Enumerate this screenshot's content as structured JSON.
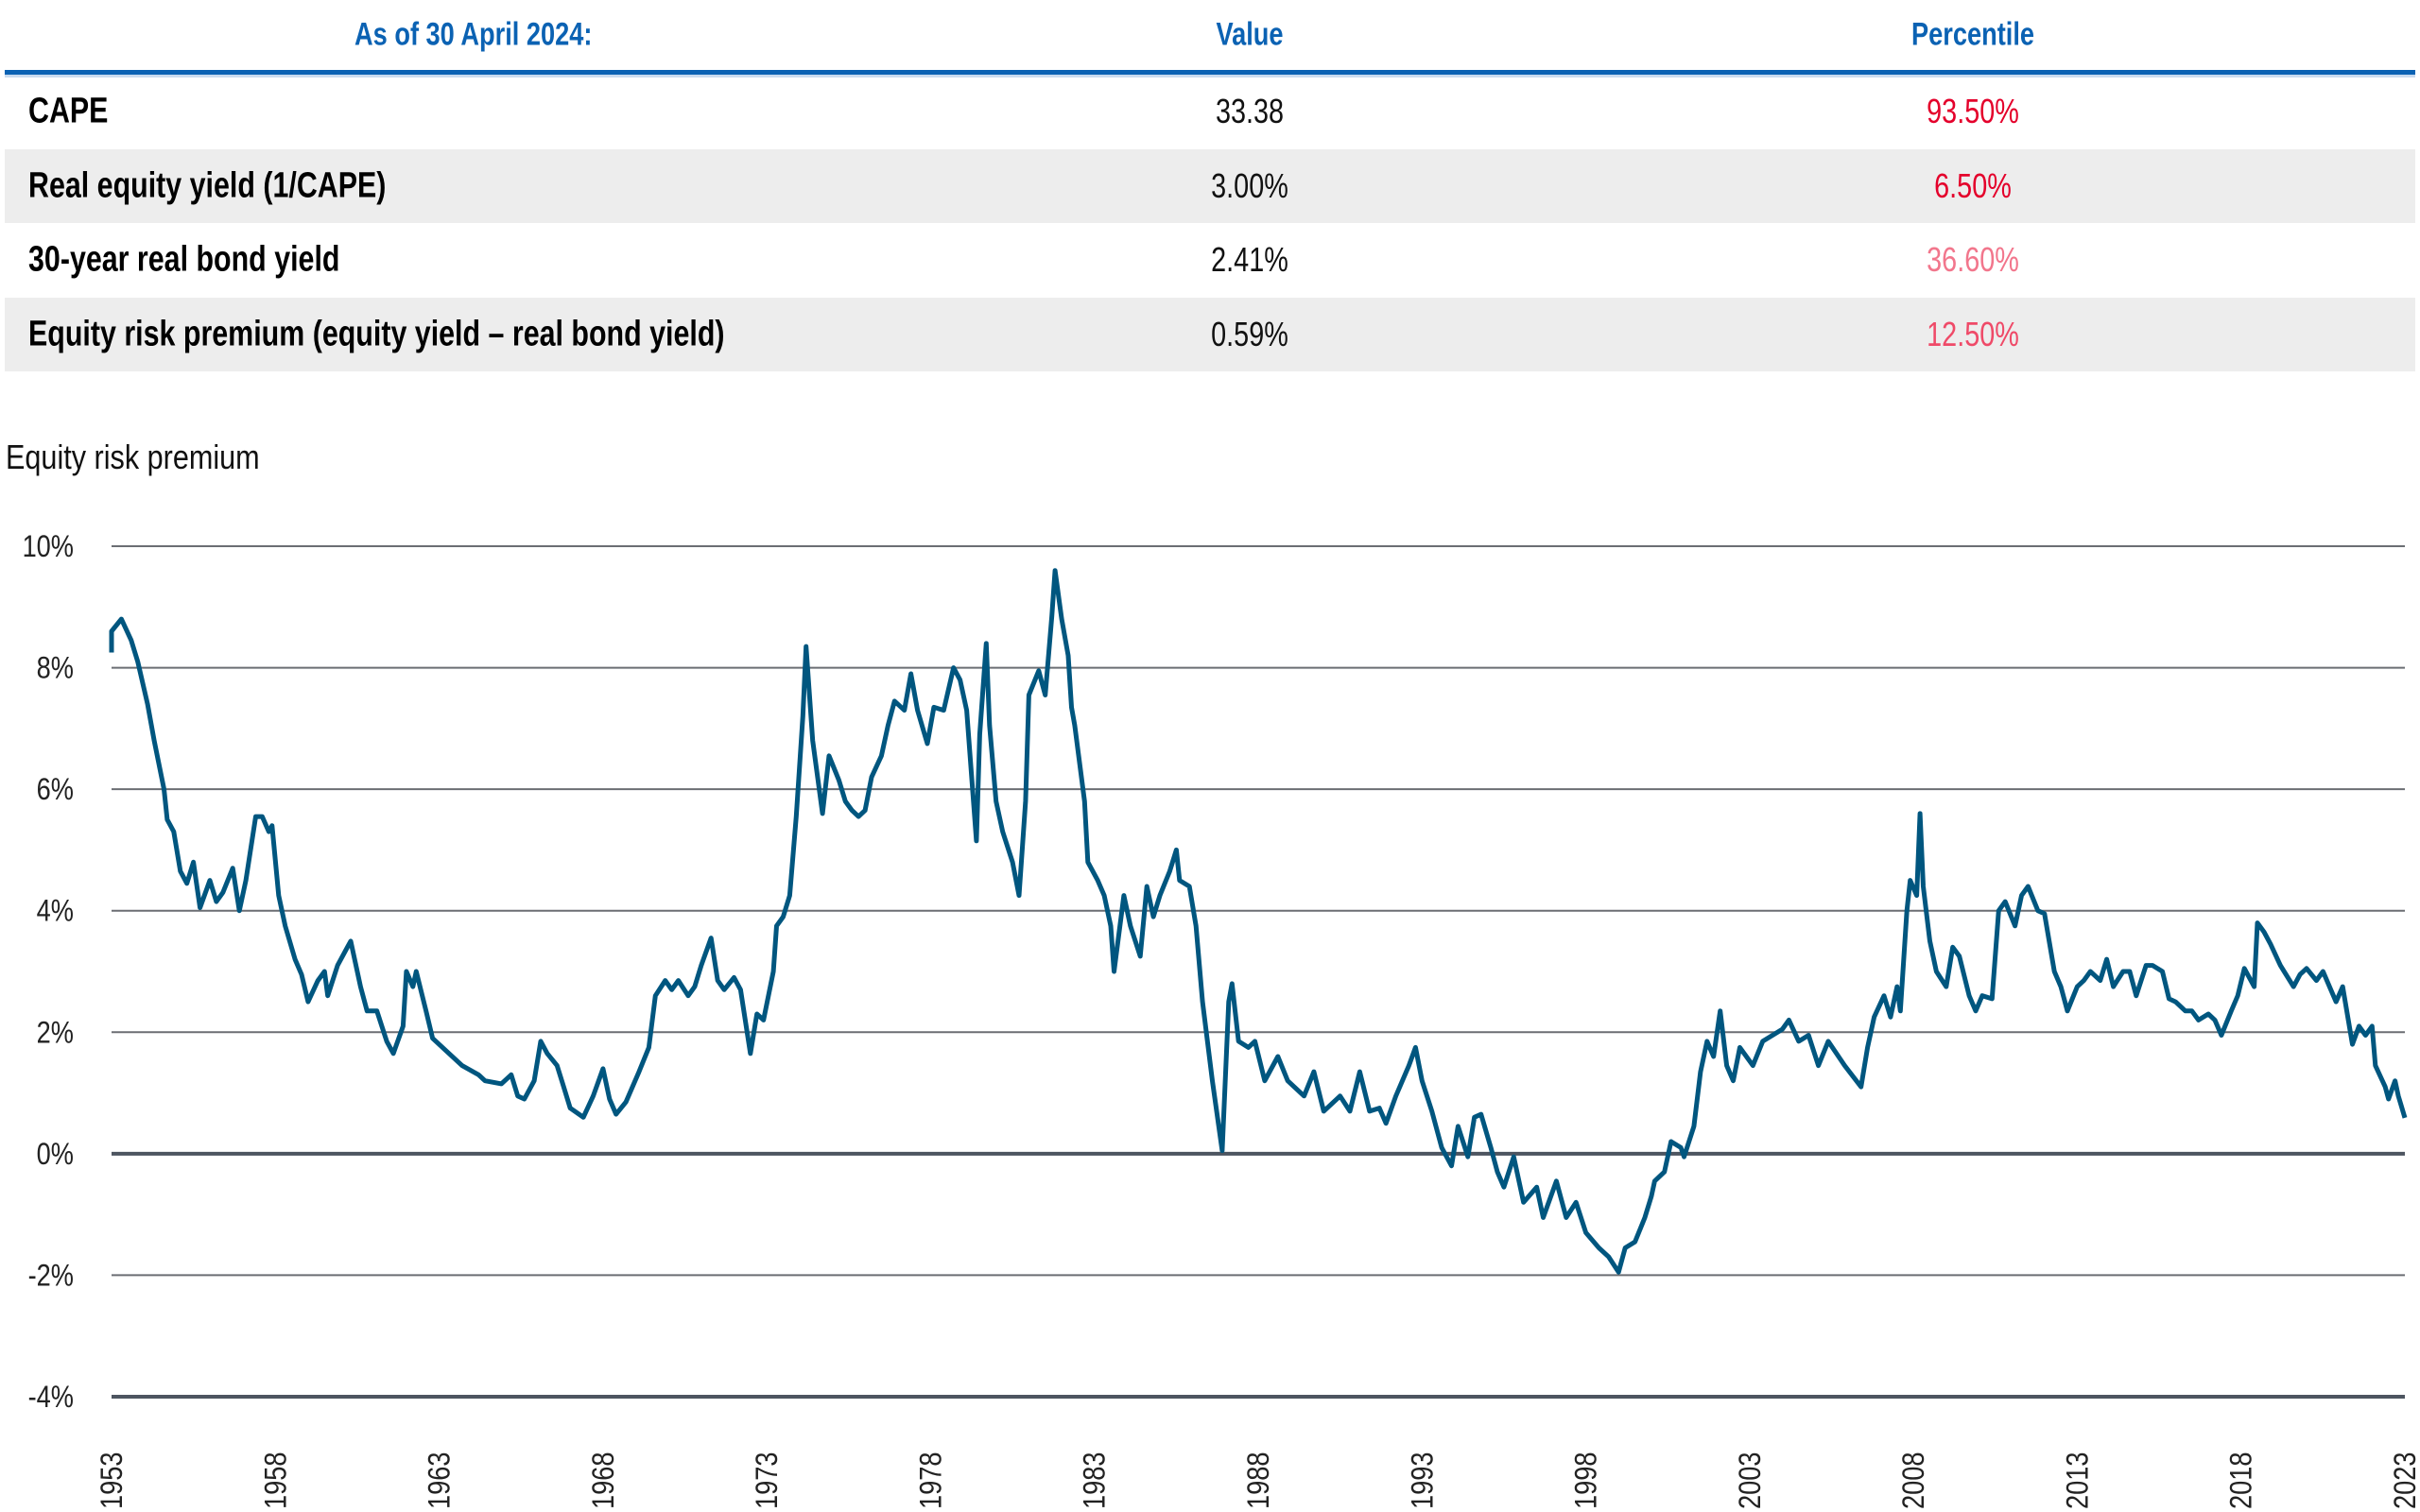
{
  "table": {
    "headers": [
      "As of 30 April 2024:",
      "Value",
      "Percentile"
    ],
    "rows": [
      {
        "label": "CAPE",
        "value": "33.38",
        "percentile": "93.50%",
        "color": "#e4002b"
      },
      {
        "label": "Real equity yield (1/CAPE)",
        "value": "3.00%",
        "percentile": "6.50%",
        "color": "#e4002b"
      },
      {
        "label": "30-year real bond yield",
        "value": "2.41%",
        "percentile": "36.60%",
        "color": "#f2768c"
      },
      {
        "label": "Equity risk premium (equity yield – real bond yield)",
        "value": "0.59%",
        "percentile": "12.50%",
        "color": "#ef4a68"
      }
    ]
  },
  "chart_data": {
    "type": "line",
    "title": "Equity risk premium",
    "ylim": [
      -4,
      10
    ],
    "yticks": [
      10,
      8,
      6,
      4,
      2,
      0,
      -2,
      -4
    ],
    "ytick_labels": [
      "10%",
      "8%",
      "6%",
      "4%",
      "2%",
      "0%",
      "-2%",
      "-4%"
    ],
    "xlim": [
      1953,
      2023
    ],
    "xtick_labels": [
      "1953",
      "1958",
      "1963",
      "1968",
      "1973",
      "1978",
      "1983",
      "1988",
      "1993",
      "1998",
      "2003",
      "2008",
      "2013",
      "2018",
      "2023"
    ],
    "grid": true,
    "line_color": "#00567f",
    "x": [
      1953.0,
      1953.0,
      1953.3,
      1953.6,
      1953.8,
      1954.1,
      1954.3,
      1954.6,
      1954.7,
      1954.9,
      1955.1,
      1955.3,
      1955.5,
      1955.7,
      1956.0,
      1956.2,
      1956.4,
      1956.7,
      1956.9,
      1957.1,
      1957.4,
      1957.6,
      1957.8,
      1957.9,
      1958.1,
      1958.3,
      1958.6,
      1958.8,
      1959.0,
      1959.3,
      1959.5,
      1959.6,
      1959.9,
      1960.2,
      1960.3,
      1960.6,
      1960.8,
      1961.1,
      1961.4,
      1961.6,
      1961.9,
      1962.0,
      1962.2,
      1962.3,
      1962.6,
      1962.8,
      1963.3,
      1963.7,
      1964.2,
      1964.4,
      1964.9,
      1965.2,
      1965.4,
      1965.6,
      1965.9,
      1966.1,
      1966.3,
      1966.6,
      1966.8,
      1967.0,
      1967.4,
      1967.7,
      1968.0,
      1968.2,
      1968.4,
      1968.7,
      1969.1,
      1969.4,
      1969.6,
      1969.9,
      1970.1,
      1970.3,
      1970.6,
      1970.8,
      1971.0,
      1971.3,
      1971.5,
      1971.7,
      1972.0,
      1972.2,
      1972.5,
      1972.7,
      1972.9,
      1973.2,
      1973.3,
      1973.5,
      1973.7,
      1973.9,
      1974.1,
      1974.2,
      1974.4,
      1974.7,
      1974.9,
      1975.2,
      1975.4,
      1975.6,
      1975.8,
      1976.0,
      1976.2,
      1976.5,
      1976.7,
      1976.9,
      1977.2,
      1977.4,
      1977.6,
      1977.9,
      1978.1,
      1978.4,
      1978.7,
      1978.9,
      1979.1,
      1979.4,
      1979.5,
      1979.7,
      1979.8,
      1980.0,
      1980.2,
      1980.5,
      1980.7,
      1980.9,
      1981.0,
      1981.3,
      1981.5,
      1981.7,
      1981.8,
      1982.0,
      1982.2,
      1982.3,
      1982.4,
      1982.7,
      1982.8,
      1983.1,
      1983.3,
      1983.5,
      1983.6,
      1983.9,
      1984.1,
      1984.4,
      1984.6,
      1984.8,
      1985.0,
      1985.3,
      1985.5,
      1985.6,
      1985.9,
      1986.1,
      1986.3,
      1986.6,
      1986.9,
      1987.1,
      1987.2,
      1987.4,
      1987.7,
      1987.9,
      1988.2,
      1988.6,
      1988.9,
      1989.4,
      1989.7,
      1990.0,
      1990.5,
      1990.8,
      1991.1,
      1991.4,
      1991.7,
      1991.9,
      1992.2,
      1992.6,
      1992.8,
      1993.0,
      1993.3,
      1993.6,
      1993.9,
      1994.1,
      1994.4,
      1994.6,
      1994.8,
      1995.1,
      1995.3,
      1995.5,
      1995.8,
      1996.1,
      1996.5,
      1996.7,
      1997.1,
      1997.4,
      1997.7,
      1998.0,
      1998.4,
      1998.7,
      1999.0,
      1999.2,
      1999.5,
      1999.8,
      2000.0,
      2000.1,
      2000.4,
      2000.6,
      2000.9,
      2001.0,
      2001.3,
      2001.5,
      2001.7,
      2001.9,
      2002.1,
      2002.3,
      2002.5,
      2002.7,
      2003.1,
      2003.4,
      2003.7,
      2004.0,
      2004.2,
      2004.5,
      2004.8,
      2005.1,
      2005.4,
      2005.9,
      2006.4,
      2006.6,
      2006.8,
      2007.1,
      2007.3,
      2007.5,
      2007.6,
      2007.8,
      2007.9,
      2008.1,
      2008.2,
      2008.3,
      2008.5,
      2008.7,
      2009.0,
      2009.2,
      2009.4,
      2009.7,
      2009.9,
      2010.1,
      2010.4,
      2010.6,
      2010.8,
      2011.1,
      2011.3,
      2011.5,
      2011.8,
      2012.0,
      2012.3,
      2012.5,
      2012.7,
      2013.0,
      2013.2,
      2013.4,
      2013.7,
      2013.9,
      2014.1,
      2014.4,
      2014.6,
      2014.8,
      2015.1,
      2015.3,
      2015.6,
      2015.8,
      2016.0,
      2016.3,
      2016.5,
      2016.7,
      2017.0,
      2017.2,
      2017.4,
      2017.7,
      2017.9,
      2018.1,
      2018.4,
      2018.5,
      2018.7,
      2018.9,
      2019.2,
      2019.6,
      2019.8,
      2020.0,
      2020.3,
      2020.5,
      2020.7,
      2020.9,
      2021.1,
      2021.4,
      2021.6,
      2021.8,
      2022.0,
      2022.1,
      2022.4,
      2022.5,
      2022.7,
      2022.8,
      2023.0
    ],
    "y": [
      8.25,
      8.6,
      8.8,
      8.45,
      8.1,
      7.4,
      6.8,
      6.0,
      5.5,
      5.3,
      4.65,
      4.45,
      4.8,
      4.05,
      4.5,
      4.15,
      4.3,
      4.7,
      4.0,
      4.5,
      5.55,
      5.55,
      5.3,
      5.4,
      4.25,
      3.75,
      3.2,
      2.95,
      2.5,
      2.85,
      3.0,
      2.6,
      3.1,
      3.4,
      3.5,
      2.75,
      2.35,
      2.35,
      1.85,
      1.65,
      2.1,
      3.0,
      2.75,
      3.0,
      2.35,
      1.9,
      1.65,
      1.45,
      1.3,
      1.2,
      1.15,
      1.3,
      0.95,
      0.9,
      1.2,
      1.85,
      1.65,
      1.45,
      1.1,
      0.75,
      0.6,
      0.95,
      1.4,
      0.9,
      0.65,
      0.85,
      1.35,
      1.75,
      2.6,
      2.85,
      2.7,
      2.85,
      2.6,
      2.75,
      3.1,
      3.55,
      2.85,
      2.7,
      2.9,
      2.7,
      1.65,
      2.3,
      2.2,
      3.0,
      3.75,
      3.9,
      4.25,
      5.55,
      7.2,
      8.35,
      6.8,
      5.6,
      6.55,
      6.15,
      5.8,
      5.65,
      5.55,
      5.65,
      6.2,
      6.55,
      7.05,
      7.45,
      7.3,
      7.9,
      7.3,
      6.75,
      7.35,
      7.3,
      8.0,
      7.8,
      7.3,
      5.15,
      6.9,
      8.4,
      7.05,
      5.8,
      5.3,
      4.8,
      4.25,
      5.8,
      7.55,
      7.95,
      7.55,
      8.85,
      9.6,
      8.8,
      8.2,
      7.35,
      7.05,
      5.8,
      4.8,
      4.5,
      4.25,
      3.75,
      3.0,
      4.25,
      3.75,
      3.25,
      4.4,
      3.9,
      4.25,
      4.65,
      5.0,
      4.5,
      4.4,
      3.75,
      2.5,
      1.2,
      0.05,
      2.5,
      2.8,
      1.85,
      1.75,
      1.85,
      1.2,
      1.6,
      1.2,
      0.95,
      1.35,
      0.7,
      0.95,
      0.7,
      1.35,
      0.7,
      0.75,
      0.5,
      0.95,
      1.45,
      1.75,
      1.2,
      0.7,
      0.1,
      -0.2,
      0.45,
      -0.05,
      0.6,
      0.65,
      0.1,
      -0.3,
      -0.55,
      -0.05,
      -0.8,
      -0.55,
      -1.05,
      -0.45,
      -1.05,
      -0.8,
      -1.3,
      -1.55,
      -1.7,
      -1.95,
      -1.55,
      -1.45,
      -1.05,
      -0.7,
      -0.45,
      -0.3,
      0.2,
      0.1,
      -0.05,
      0.45,
      1.35,
      1.85,
      1.6,
      2.35,
      1.45,
      1.2,
      1.75,
      1.45,
      1.85,
      1.95,
      2.05,
      2.2,
      1.85,
      1.95,
      1.45,
      1.85,
      1.45,
      1.1,
      1.75,
      2.25,
      2.6,
      2.25,
      2.75,
      2.35,
      4.0,
      4.5,
      4.25,
      5.6,
      4.4,
      3.5,
      3.0,
      2.75,
      3.4,
      3.25,
      2.6,
      2.35,
      2.6,
      2.55,
      4.0,
      4.15,
      3.75,
      4.25,
      4.4,
      4.0,
      3.95,
      3.0,
      2.75,
      2.35,
      2.75,
      2.85,
      3.0,
      2.85,
      3.2,
      2.75,
      3.0,
      3.0,
      2.6,
      3.1,
      3.1,
      3.0,
      2.55,
      2.5,
      2.35,
      2.35,
      2.2,
      2.3,
      2.2,
      1.95,
      2.35,
      2.6,
      3.05,
      2.75,
      3.8,
      3.65,
      3.45,
      3.1,
      2.75,
      2.95,
      3.05,
      2.85,
      3.0,
      2.75,
      2.5,
      2.75,
      1.8,
      2.1,
      1.95,
      2.1,
      1.45,
      1.1,
      0.9,
      1.2,
      0.95,
      0.59
    ]
  }
}
